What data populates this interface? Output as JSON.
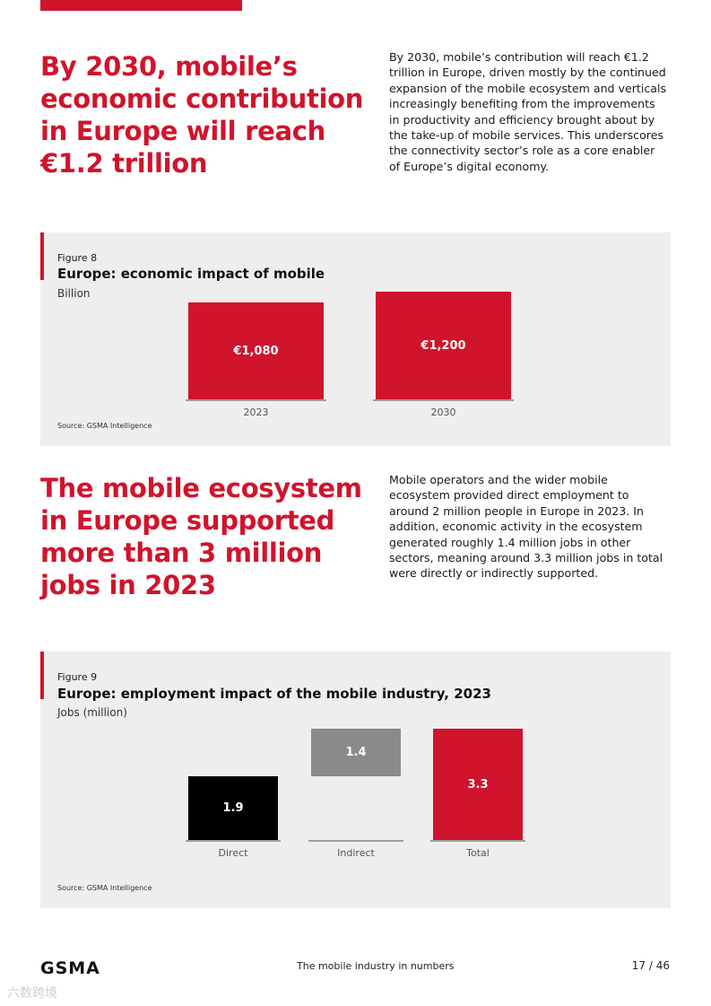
{
  "section1": {
    "headline": "By 2030, mobile’s\neconomic contribution\nin Europe will reach\n€1.2 trillion",
    "body": "By 2030, mobile’s contribution will reach €1.2 trillion in Europe, driven mostly by the continued expansion of the mobile ecosystem and verticals increasingly benefiting from the improvements in productivity and efficiency brought about by the take-up of mobile services. This underscores the connectivity sector’s role as a core enabler of Europe’s digital economy."
  },
  "figure8": {
    "label": "Figure 8",
    "title": "Europe: economic impact of mobile",
    "unit": "Billion",
    "source": "Source: GSMA Intelligence"
  },
  "section2": {
    "headline": "The mobile ecosystem\nin Europe supported\nmore than 3 million\njobs in 2023",
    "body": "Mobile operators and the wider mobile ecosystem provided direct employment to around 2 million people in Europe in 2023. In addition, economic activity in the ecosystem generated roughly 1.4 million jobs in other sectors, meaning around 3.3 million jobs in total were directly or indirectly supported."
  },
  "figure9": {
    "label": "Figure 9",
    "title": "Europe: employment impact of the mobile industry, 2023",
    "unit": "Jobs (million)",
    "source": "Source: GSMA Intelligence"
  },
  "chart_data": [
    {
      "type": "bar",
      "title": "Europe: economic impact of mobile",
      "ylabel": "Billion",
      "categories": [
        "2023",
        "2030"
      ],
      "values": [
        1080,
        1200
      ],
      "data_labels": [
        "€1,080",
        "€1,200"
      ],
      "colors": [
        "#d0142c",
        "#d0142c"
      ],
      "ylim": [
        0,
        1200
      ]
    },
    {
      "type": "bar",
      "subtype": "waterfall",
      "title": "Europe: employment impact of the mobile industry, 2023",
      "ylabel": "Jobs (million)",
      "categories": [
        "Direct",
        "Indirect",
        "Total"
      ],
      "values": [
        1.9,
        1.4,
        3.3
      ],
      "bases": [
        0,
        1.9,
        0
      ],
      "data_labels": [
        "1.9",
        "1.4",
        "3.3"
      ],
      "colors": [
        "#000000",
        "#8a8a8c",
        "#d0142c"
      ],
      "ylim": [
        0,
        3.3
      ]
    }
  ],
  "footer": {
    "logo": "GSMA",
    "center": "The mobile industry in numbers",
    "page": "17 / 46",
    "watermark": "六数跨境"
  }
}
